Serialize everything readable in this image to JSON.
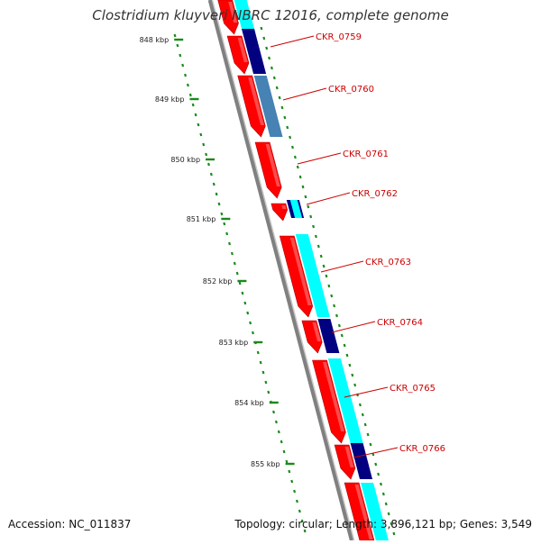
{
  "title": "Clostridium kluyveri NBRC 12016, complete genome",
  "footer": {
    "accession": "Accession: NC_011837",
    "summary": "Topology: circular; Length: 3,896,121 bp; Genes: 3,549"
  },
  "scale_labels": [
    "848 kbp",
    "849 kbp",
    "850 kbp",
    "851 kbp",
    "852 kbp",
    "853 kbp",
    "854 kbp",
    "855 kbp"
  ],
  "colors": {
    "backbone": "#808080",
    "cds": "#ff0000",
    "label": "#cc0000",
    "tick": "#1a8a1a",
    "cyan": "#00ffff",
    "navy": "#000080",
    "steelblue": "#4682b4"
  },
  "genes": [
    {
      "label": "CKR_0759"
    },
    {
      "label": "CKR_0760"
    },
    {
      "label": "CKR_0761"
    },
    {
      "label": "CKR_0762"
    },
    {
      "label": "CKR_0763"
    },
    {
      "label": "CKR_0764"
    },
    {
      "label": "CKR_0765"
    },
    {
      "label": "CKR_0766"
    }
  ]
}
